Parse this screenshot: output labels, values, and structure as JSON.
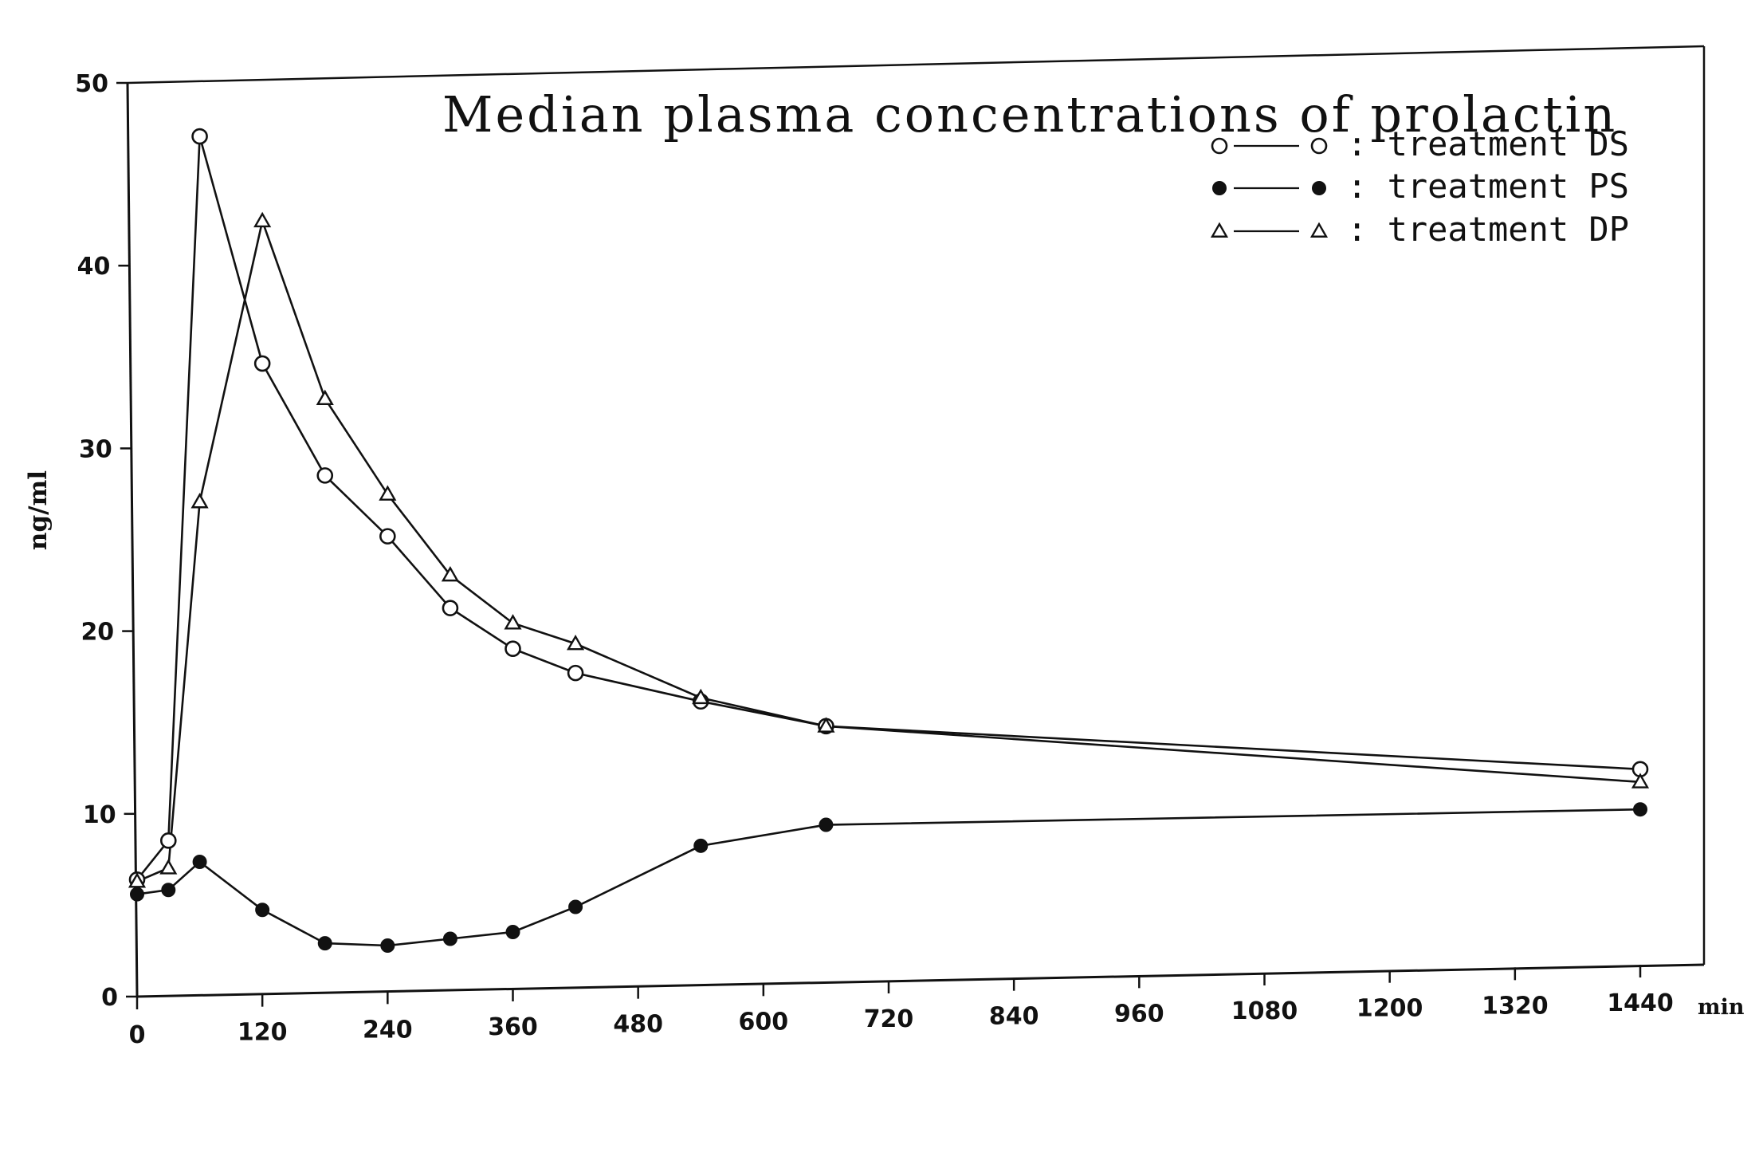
{
  "chart_data": {
    "type": "line",
    "title": "Median plasma concentrations of prolactin",
    "xlabel": "",
    "x_unit": "min",
    "ylabel": "ng/ml",
    "xlim": [
      0,
      1440
    ],
    "ylim": [
      0,
      50
    ],
    "x_ticks": [
      0,
      120,
      240,
      360,
      480,
      600,
      720,
      840,
      960,
      1080,
      1200,
      1320,
      1440
    ],
    "y_ticks": [
      0,
      10,
      20,
      30,
      40,
      50
    ],
    "grid": false,
    "legend_position": "top-right",
    "series": [
      {
        "name": ": treatment DS",
        "marker": "open-circle",
        "x": [
          0,
          30,
          60,
          120,
          180,
          240,
          300,
          360,
          420,
          540,
          660,
          1440
        ],
        "y": [
          6.4,
          8.5,
          47.0,
          34.5,
          28.3,
          24.9,
          20.9,
          18.6,
          17.2,
          15.5,
          14.0,
          10.7
        ]
      },
      {
        "name": ": treatment PS",
        "marker": "filled-circle",
        "x": [
          0,
          30,
          60,
          120,
          180,
          240,
          300,
          360,
          420,
          540,
          660,
          1440
        ],
        "y": [
          5.6,
          5.8,
          7.3,
          4.6,
          2.7,
          2.5,
          2.8,
          3.1,
          4.4,
          7.6,
          8.6,
          8.5
        ]
      },
      {
        "name": ": treatment DP",
        "marker": "open-triangle",
        "x": [
          0,
          30,
          60,
          120,
          180,
          240,
          300,
          360,
          420,
          540,
          660,
          1440
        ],
        "y": [
          6.3,
          7.0,
          27.0,
          42.3,
          32.5,
          27.2,
          22.7,
          20.0,
          18.8,
          15.7,
          14.0,
          10.0
        ]
      }
    ]
  }
}
